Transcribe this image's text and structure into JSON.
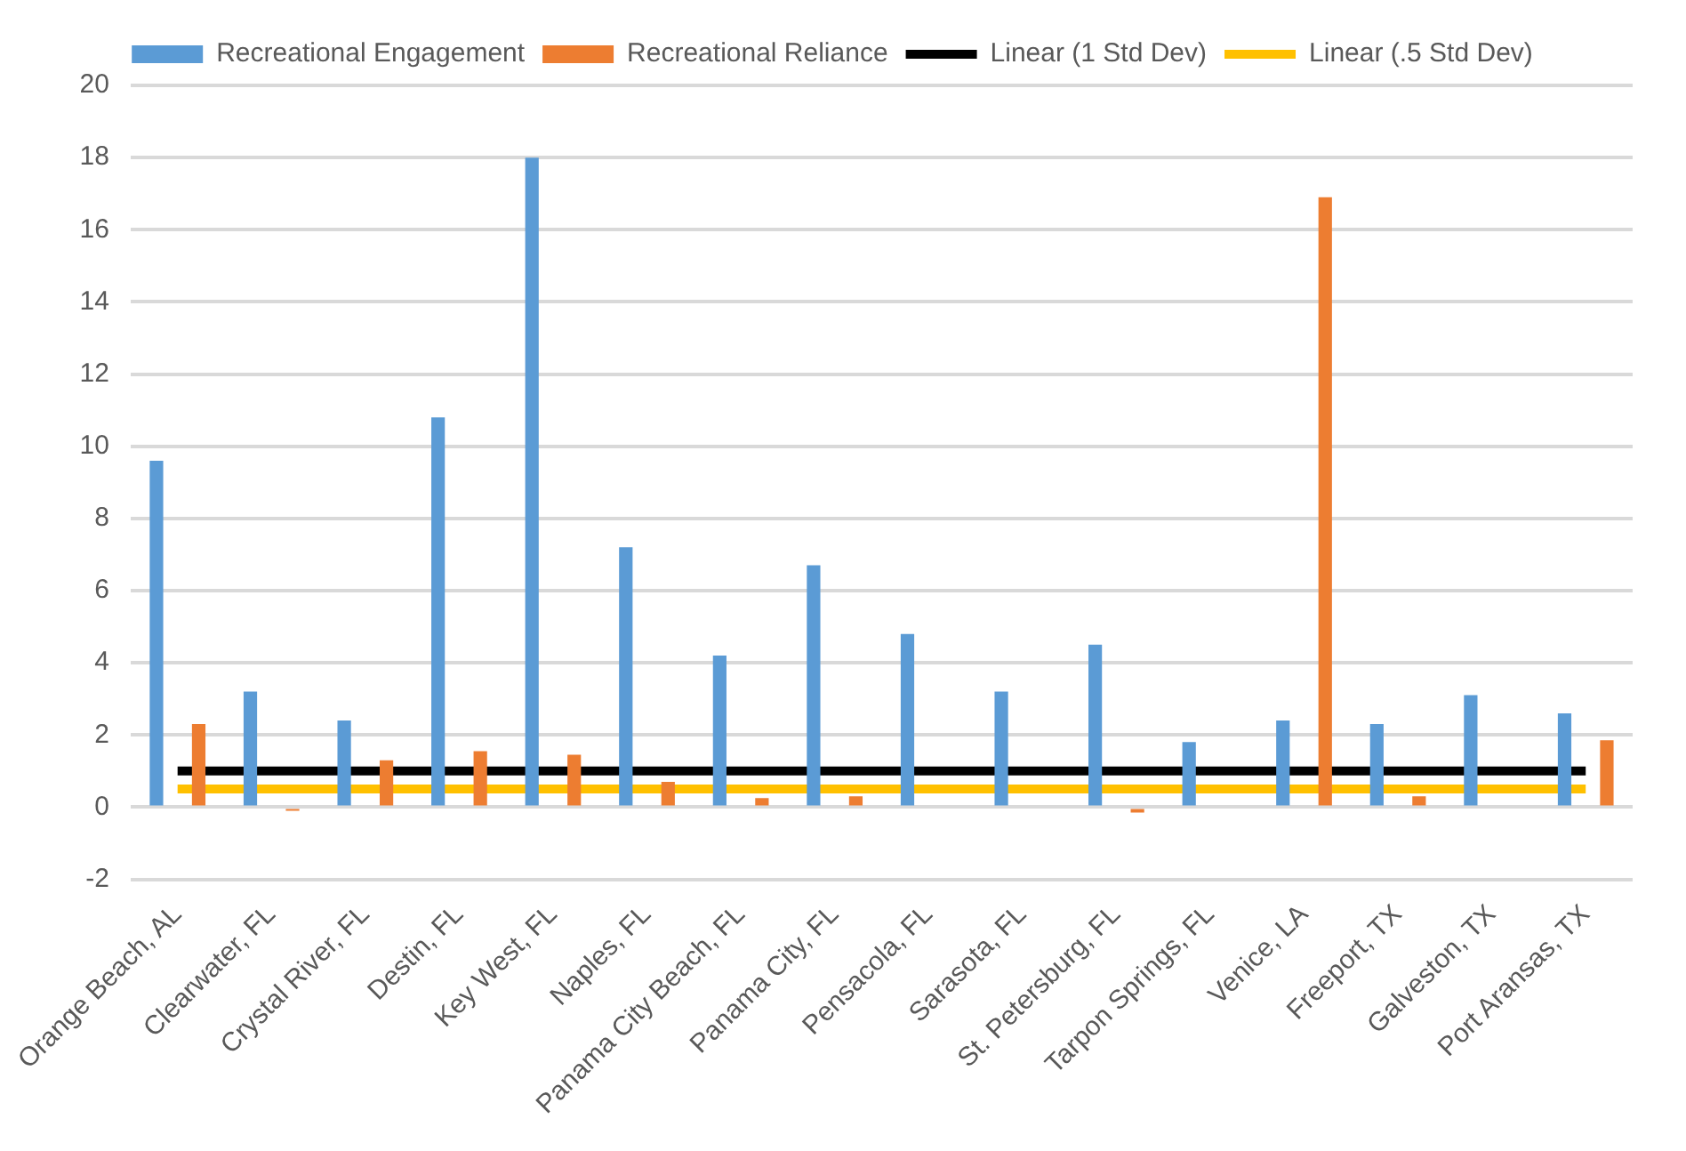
{
  "chart_data": {
    "type": "bar",
    "categories": [
      "Orange Beach, AL",
      "Clearwater, FL",
      "Crystal River, FL",
      "Destin, FL",
      "Key West, FL",
      "Naples, FL",
      "Panama City Beach, FL",
      "Panama City, FL",
      "Pensacola, FL",
      "Sarasota, FL",
      "St. Petersburg, FL",
      "Tarpon Springs, FL",
      "Venice, LA",
      "Freeport, TX",
      "Galveston, TX",
      "Port Aransas, TX"
    ],
    "series": [
      {
        "name": "Recreational Engagement",
        "color": "#5b9bd5",
        "values": [
          9.6,
          3.2,
          2.4,
          10.8,
          18.0,
          7.2,
          4.2,
          6.7,
          4.8,
          3.2,
          4.5,
          1.8,
          2.4,
          2.3,
          3.1,
          2.6
        ]
      },
      {
        "name": "Recreational Reliance",
        "color": "#ed7d31",
        "values": [
          2.3,
          -0.1,
          1.3,
          1.55,
          1.45,
          0.7,
          0.25,
          0.3,
          0,
          0,
          -0.15,
          0,
          16.9,
          0.3,
          0,
          1.85
        ]
      },
      {
        "name": "Linear (1 Std Dev)",
        "type": "line",
        "color": "#000000",
        "values": [
          1,
          1,
          1,
          1,
          1,
          1,
          1,
          1,
          1,
          1,
          1,
          1,
          1,
          1,
          1,
          1
        ]
      },
      {
        "name": "Linear (.5 Std Dev)",
        "type": "line",
        "color": "#ffc000",
        "values": [
          0.5,
          0.5,
          0.5,
          0.5,
          0.5,
          0.5,
          0.5,
          0.5,
          0.5,
          0.5,
          0.5,
          0.5,
          0.5,
          0.5,
          0.5,
          0.5
        ]
      }
    ],
    "ylim": [
      -2,
      20
    ],
    "yticks": [
      -2,
      0,
      2,
      4,
      6,
      8,
      10,
      12,
      14,
      16,
      18,
      20
    ],
    "grid": "y",
    "legend": "top",
    "marker": "none"
  }
}
